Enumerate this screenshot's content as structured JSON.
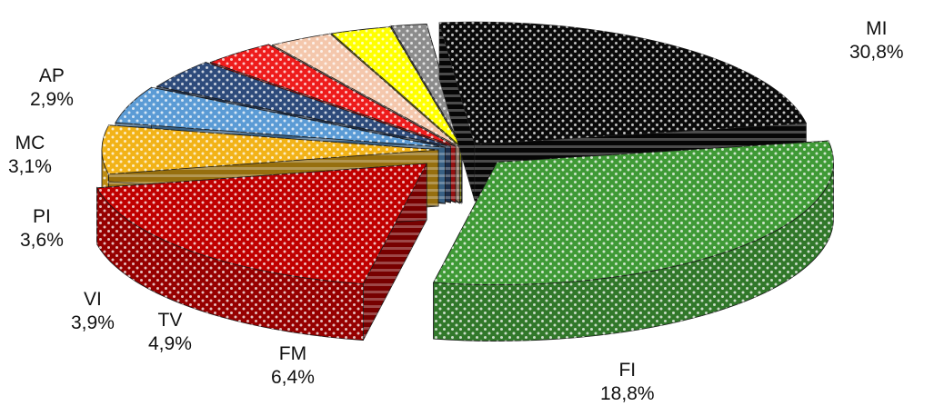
{
  "chart_data": {
    "type": "pie",
    "style": "3d-exploded",
    "title": "",
    "slices": [
      {
        "label": "MI",
        "value_label": "30,8%",
        "value": 30.8,
        "color": "#3f9a36"
      },
      {
        "label": "FI",
        "value_label": "18,8%",
        "value": 18.8,
        "color": "#c00000"
      },
      {
        "label": "FM",
        "value_label": "6,4%",
        "value": 6.4,
        "color": "#f2b318"
      },
      {
        "label": "TV",
        "value_label": "4,9%",
        "value": 4.9,
        "color": "#5b9bd5"
      },
      {
        "label": "VI",
        "value_label": "3,9%",
        "value": 3.9,
        "color": "#2e4b7b"
      },
      {
        "label": "PI",
        "value_label": "3,6%",
        "value": 3.6,
        "color": "#ee1c1c"
      },
      {
        "label": "MC",
        "value_label": "3,1%",
        "value": 3.1,
        "color": "#f4c7ac"
      },
      {
        "label": "AP",
        "value_label": "2,9%",
        "value": 2.9,
        "color": "#ffff00"
      },
      {
        "label": "",
        "value_label": "",
        "value": 1.7,
        "color": "#8c8c8c"
      },
      {
        "label": "",
        "value_label": "",
        "value": 23.9,
        "color": "#0a0a0a"
      }
    ]
  }
}
